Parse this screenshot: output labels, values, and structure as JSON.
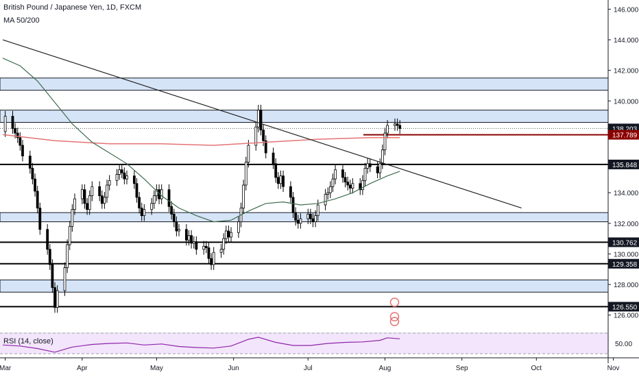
{
  "chart_data": {
    "type": "candlestick",
    "title": "British Pound / Japanese Yen, 1D, FXCM",
    "indicator_label": "MA 50/200",
    "rsi_label": "RSI (14, close)",
    "rsi_level_label": "50.00",
    "y_range": [
      125.0,
      146.6
    ],
    "y_ticks": [
      "146.000",
      "144.000",
      "142.000",
      "140.000",
      "134.000",
      "132.000",
      "130.000",
      "128.000",
      "126.000"
    ],
    "x_labels": [
      "Mar",
      "Apr",
      "May",
      "Jun",
      "Jul",
      "Aug",
      "Sep",
      "Oct",
      "Nov"
    ],
    "price_tags": [
      {
        "value": 138.203,
        "label": "138.203",
        "style": "dark"
      },
      {
        "value": 137.789,
        "label": "137.789",
        "style": "red"
      },
      {
        "value": 135.848,
        "label": "135.848",
        "style": "dark"
      },
      {
        "value": 130.762,
        "label": "130.762",
        "style": "dark"
      },
      {
        "value": 129.358,
        "label": "129.358",
        "style": "dark"
      },
      {
        "value": 126.55,
        "label": "126.550",
        "style": "dark"
      }
    ],
    "zones": [
      {
        "from": 140.7,
        "to": 141.5
      },
      {
        "from": 138.6,
        "to": 139.4
      },
      {
        "from": 132.1,
        "to": 132.7
      },
      {
        "from": 127.5,
        "to": 128.3
      }
    ],
    "horizontal_lines": [
      135.848,
      130.762,
      129.358,
      126.55,
      137.789
    ],
    "trendline": {
      "from": [
        "2019-02-28",
        144.0
      ],
      "to": [
        "2019-09-25",
        133.0
      ]
    },
    "ma50": [
      [
        "2019-02-28",
        142.8
      ],
      [
        "2019-03-07",
        142.3
      ],
      [
        "2019-03-14",
        141.3
      ],
      [
        "2019-03-21",
        139.9
      ],
      [
        "2019-03-28",
        138.5
      ],
      [
        "2019-04-05",
        137.3
      ],
      [
        "2019-04-12",
        136.6
      ],
      [
        "2019-04-19",
        135.9
      ],
      [
        "2019-04-26",
        134.9
      ],
      [
        "2019-05-03",
        133.8
      ],
      [
        "2019-05-10",
        133.0
      ],
      [
        "2019-05-17",
        132.5
      ],
      [
        "2019-05-24",
        132.1
      ],
      [
        "2019-05-31",
        132.2
      ],
      [
        "2019-06-07",
        132.8
      ],
      [
        "2019-06-14",
        133.3
      ],
      [
        "2019-06-21",
        133.4
      ],
      [
        "2019-06-28",
        133.2
      ],
      [
        "2019-07-05",
        133.3
      ],
      [
        "2019-07-12",
        133.6
      ],
      [
        "2019-07-19",
        134.0
      ],
      [
        "2019-07-26",
        134.6
      ],
      [
        "2019-08-02",
        135.1
      ],
      [
        "2019-08-07",
        135.4
      ]
    ],
    "ma200": [
      [
        "2019-02-28",
        137.8
      ],
      [
        "2019-03-21",
        137.4
      ],
      [
        "2019-04-12",
        137.2
      ],
      [
        "2019-05-03",
        137.2
      ],
      [
        "2019-05-24",
        137.1
      ],
      [
        "2019-06-14",
        137.3
      ],
      [
        "2019-07-05",
        137.5
      ],
      [
        "2019-07-26",
        137.6
      ],
      [
        "2019-08-07",
        137.6
      ]
    ],
    "candles_close": [
      [
        "2019-02-28",
        138.0
      ],
      [
        "2019-03-01",
        139.0
      ],
      [
        "2019-03-04",
        138.2
      ],
      [
        "2019-03-05",
        137.9
      ],
      [
        "2019-03-06",
        137.6
      ],
      [
        "2019-03-07",
        137.1
      ],
      [
        "2019-03-08",
        136.4
      ],
      [
        "2019-03-11",
        135.6
      ],
      [
        "2019-03-12",
        134.9
      ],
      [
        "2019-03-13",
        134.1
      ],
      [
        "2019-03-14",
        133.0
      ],
      [
        "2019-03-15",
        131.6
      ],
      [
        "2019-03-18",
        130.3
      ],
      [
        "2019-03-19",
        129.3
      ],
      [
        "2019-03-20",
        127.8
      ],
      [
        "2019-03-21",
        126.5
      ],
      [
        "2019-03-22",
        127.6
      ],
      [
        "2019-03-25",
        129.1
      ],
      [
        "2019-03-26",
        130.6
      ],
      [
        "2019-03-27",
        131.8
      ],
      [
        "2019-03-28",
        132.9
      ],
      [
        "2019-03-29",
        133.6
      ],
      [
        "2019-04-01",
        134.2
      ],
      [
        "2019-04-02",
        133.3
      ],
      [
        "2019-04-03",
        132.9
      ],
      [
        "2019-04-04",
        133.8
      ],
      [
        "2019-04-05",
        134.4
      ],
      [
        "2019-04-08",
        133.8
      ],
      [
        "2019-04-09",
        133.3
      ],
      [
        "2019-04-10",
        133.7
      ],
      [
        "2019-04-11",
        134.5
      ],
      [
        "2019-04-12",
        134.8
      ],
      [
        "2019-04-15",
        135.2
      ],
      [
        "2019-04-16",
        135.5
      ],
      [
        "2019-04-17",
        135.3
      ],
      [
        "2019-04-18",
        134.9
      ],
      [
        "2019-04-19",
        135.1
      ],
      [
        "2019-04-22",
        134.6
      ],
      [
        "2019-04-23",
        133.7
      ],
      [
        "2019-04-24",
        133.0
      ],
      [
        "2019-04-25",
        132.5
      ],
      [
        "2019-04-26",
        132.9
      ],
      [
        "2019-04-29",
        133.3
      ],
      [
        "2019-04-30",
        133.8
      ],
      [
        "2019-05-01",
        134.2
      ],
      [
        "2019-05-02",
        133.6
      ],
      [
        "2019-05-03",
        134.2
      ],
      [
        "2019-05-06",
        133.1
      ],
      [
        "2019-05-07",
        132.6
      ],
      [
        "2019-05-08",
        132.1
      ],
      [
        "2019-05-09",
        131.5
      ],
      [
        "2019-05-10",
        131.6
      ],
      [
        "2019-05-13",
        130.9
      ],
      [
        "2019-05-14",
        131.2
      ],
      [
        "2019-05-15",
        130.7
      ],
      [
        "2019-05-16",
        130.8
      ],
      [
        "2019-05-17",
        130.3
      ],
      [
        "2019-05-20",
        130.5
      ],
      [
        "2019-05-21",
        130.4
      ],
      [
        "2019-05-22",
        129.7
      ],
      [
        "2019-05-23",
        129.3
      ],
      [
        "2019-05-24",
        130.1
      ],
      [
        "2019-05-27",
        130.3
      ],
      [
        "2019-05-28",
        131.0
      ],
      [
        "2019-05-29",
        131.5
      ],
      [
        "2019-05-30",
        131.1
      ],
      [
        "2019-05-31",
        131.4
      ],
      [
        "2019-06-03",
        132.1
      ],
      [
        "2019-06-04",
        133.0
      ],
      [
        "2019-06-05",
        134.5
      ],
      [
        "2019-06-06",
        136.0
      ],
      [
        "2019-06-07",
        137.1
      ],
      [
        "2019-06-10",
        138.3
      ],
      [
        "2019-06-11",
        139.4
      ],
      [
        "2019-06-12",
        138.1
      ],
      [
        "2019-06-13",
        137.4
      ],
      [
        "2019-06-14",
        136.6
      ],
      [
        "2019-06-17",
        135.9
      ],
      [
        "2019-06-18",
        135.0
      ],
      [
        "2019-06-19",
        134.6
      ],
      [
        "2019-06-20",
        135.1
      ],
      [
        "2019-06-21",
        134.4
      ],
      [
        "2019-06-24",
        133.7
      ],
      [
        "2019-06-25",
        132.7
      ],
      [
        "2019-06-26",
        132.2
      ],
      [
        "2019-06-27",
        132.0
      ],
      [
        "2019-06-28",
        132.3
      ],
      [
        "2019-07-01",
        132.6
      ],
      [
        "2019-07-02",
        132.3
      ],
      [
        "2019-07-03",
        132.1
      ],
      [
        "2019-07-04",
        132.5
      ],
      [
        "2019-07-05",
        133.2
      ],
      [
        "2019-07-08",
        133.9
      ],
      [
        "2019-07-09",
        134.0
      ],
      [
        "2019-07-10",
        134.4
      ],
      [
        "2019-07-11",
        134.9
      ],
      [
        "2019-07-12",
        135.5
      ],
      [
        "2019-07-15",
        135.0
      ],
      [
        "2019-07-16",
        134.7
      ],
      [
        "2019-07-17",
        134.5
      ],
      [
        "2019-07-18",
        134.3
      ],
      [
        "2019-07-19",
        134.6
      ],
      [
        "2019-07-22",
        134.2
      ],
      [
        "2019-07-23",
        134.8
      ],
      [
        "2019-07-24",
        135.6
      ],
      [
        "2019-07-25",
        135.9
      ],
      [
        "2019-07-26",
        135.7
      ],
      [
        "2019-07-29",
        135.3
      ],
      [
        "2019-07-30",
        135.9
      ],
      [
        "2019-07-31",
        136.8
      ],
      [
        "2019-08-01",
        137.9
      ],
      [
        "2019-08-02",
        138.4
      ],
      [
        "2019-08-05",
        138.5
      ],
      [
        "2019-08-06",
        138.4
      ],
      [
        "2019-08-07",
        138.2
      ]
    ],
    "rsi": [
      [
        "2019-02-28",
        47
      ],
      [
        "2019-03-07",
        45
      ],
      [
        "2019-03-14",
        40
      ],
      [
        "2019-03-21",
        33
      ],
      [
        "2019-03-28",
        43
      ],
      [
        "2019-04-05",
        48
      ],
      [
        "2019-04-12",
        50
      ],
      [
        "2019-04-19",
        51
      ],
      [
        "2019-04-26",
        47
      ],
      [
        "2019-05-03",
        49
      ],
      [
        "2019-05-10",
        44
      ],
      [
        "2019-05-17",
        42
      ],
      [
        "2019-05-24",
        41
      ],
      [
        "2019-05-31",
        45
      ],
      [
        "2019-06-07",
        58
      ],
      [
        "2019-06-11",
        62
      ],
      [
        "2019-06-18",
        52
      ],
      [
        "2019-06-25",
        46
      ],
      [
        "2019-07-02",
        46
      ],
      [
        "2019-07-09",
        50
      ],
      [
        "2019-07-16",
        52
      ],
      [
        "2019-07-23",
        53
      ],
      [
        "2019-07-30",
        56
      ],
      [
        "2019-08-02",
        61
      ],
      [
        "2019-08-07",
        59
      ]
    ]
  }
}
